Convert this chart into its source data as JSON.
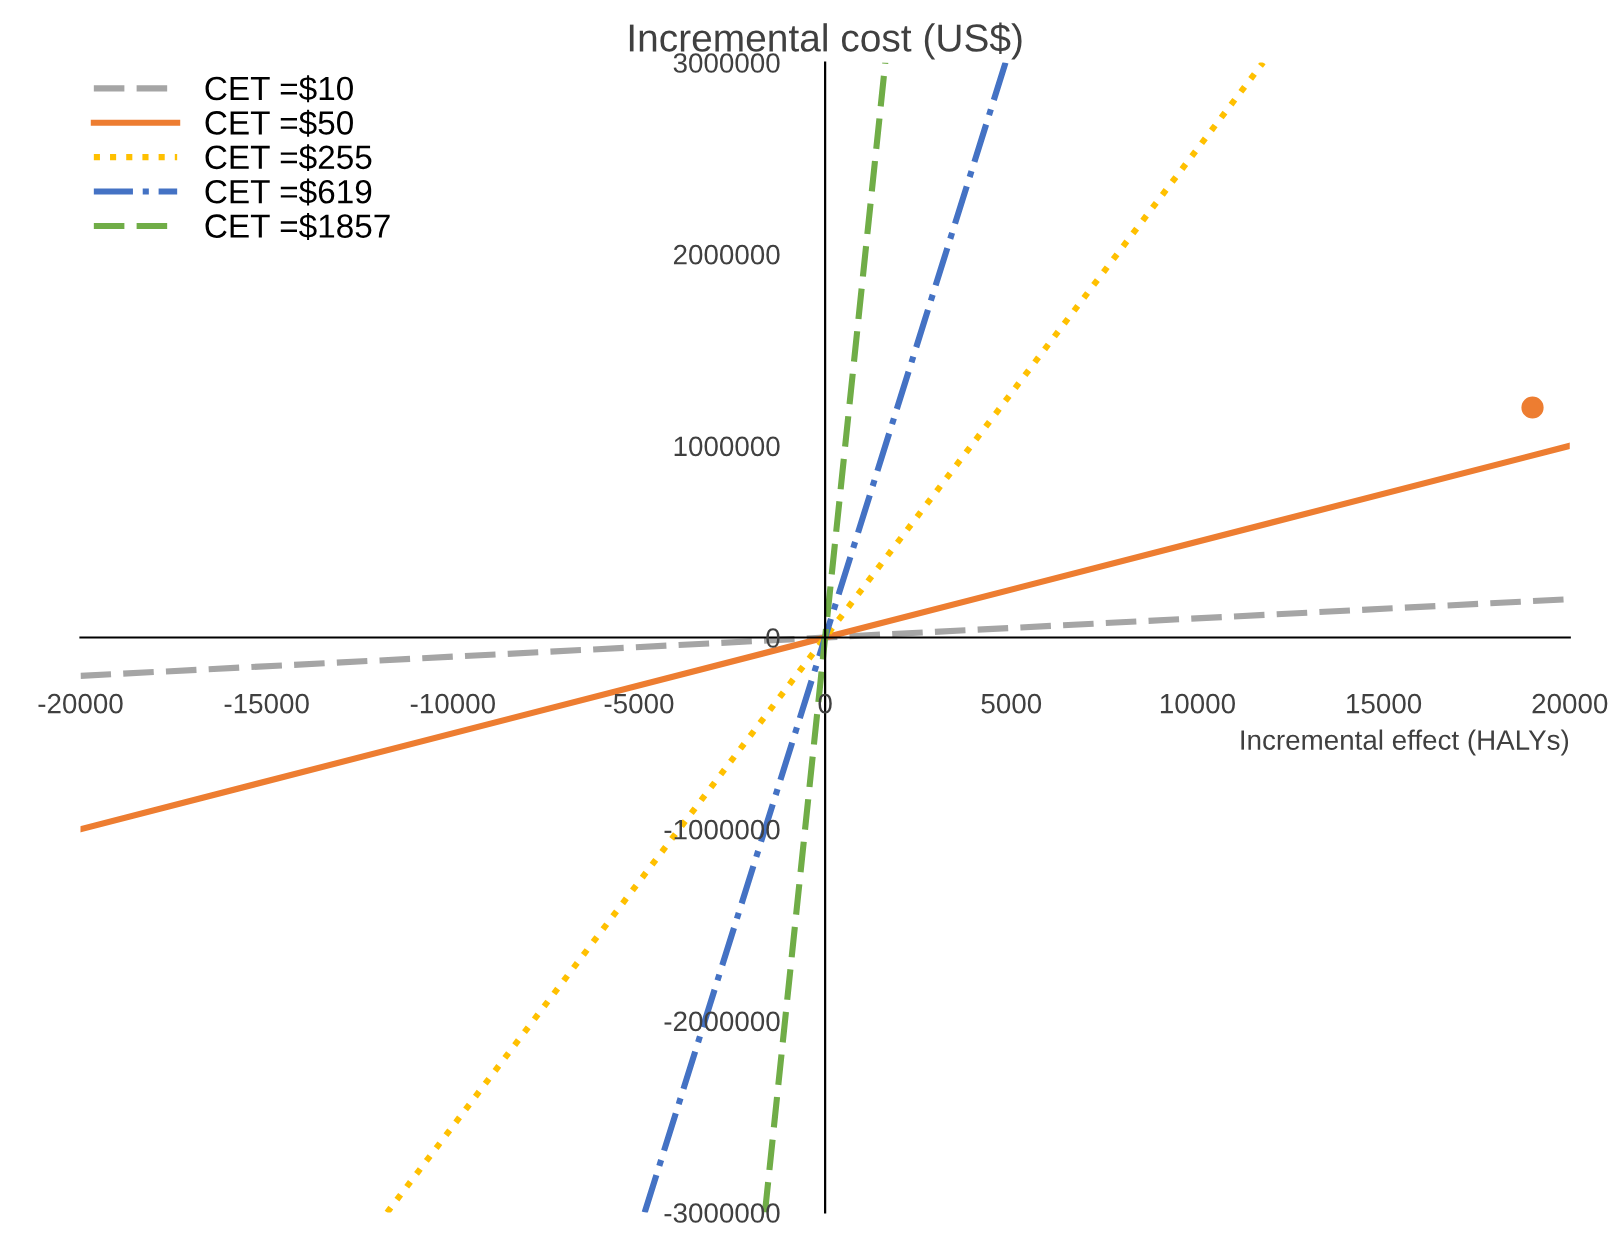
{
  "chart_data": {
    "type": "line",
    "xlabel": "Incremental effect (HALYs)",
    "ylabel": "Incremental cost (US$)",
    "xlim": [
      -20000,
      20000
    ],
    "ylim": [
      -3000000,
      3000000
    ],
    "xticks": [
      -20000,
      -15000,
      -10000,
      -5000,
      0,
      5000,
      10000,
      15000,
      20000
    ],
    "yticks": [
      -3000000,
      -2000000,
      -1000000,
      0,
      1000000,
      2000000,
      3000000
    ],
    "grid": false,
    "legend": "top left",
    "marker": "none",
    "series": [
      {
        "name": "CET =$10",
        "color": "#a5a5a5",
        "line_style": "dashed",
        "x": [
          -20000,
          20000
        ],
        "values": [
          -200000,
          200000
        ]
      },
      {
        "name": "CET =$50",
        "color": "#ed7d31",
        "line_style": "solid",
        "x": [
          -20000,
          20000
        ],
        "values": [
          -1000000,
          1000000
        ]
      },
      {
        "name": "CET =$255",
        "color": "#ffc000",
        "line_style": "dotted",
        "x": [
          -11765,
          11765
        ],
        "values": [
          -3000000,
          3000000
        ]
      },
      {
        "name": "CET =$619",
        "color": "#4472c4",
        "line_style": "dashdot",
        "x": [
          -4847,
          4847
        ],
        "values": [
          -3000000,
          3000000
        ]
      },
      {
        "name": "CET =$1857",
        "color": "#70ad47",
        "line_style": "dashed",
        "x": [
          -1616,
          1616
        ],
        "values": [
          -3000000,
          3000000
        ]
      },
      {
        "type": "scatter",
        "color": "#ed7d31",
        "marker": "circle",
        "x": [
          19000
        ],
        "values": [
          1200000
        ]
      }
    ]
  }
}
